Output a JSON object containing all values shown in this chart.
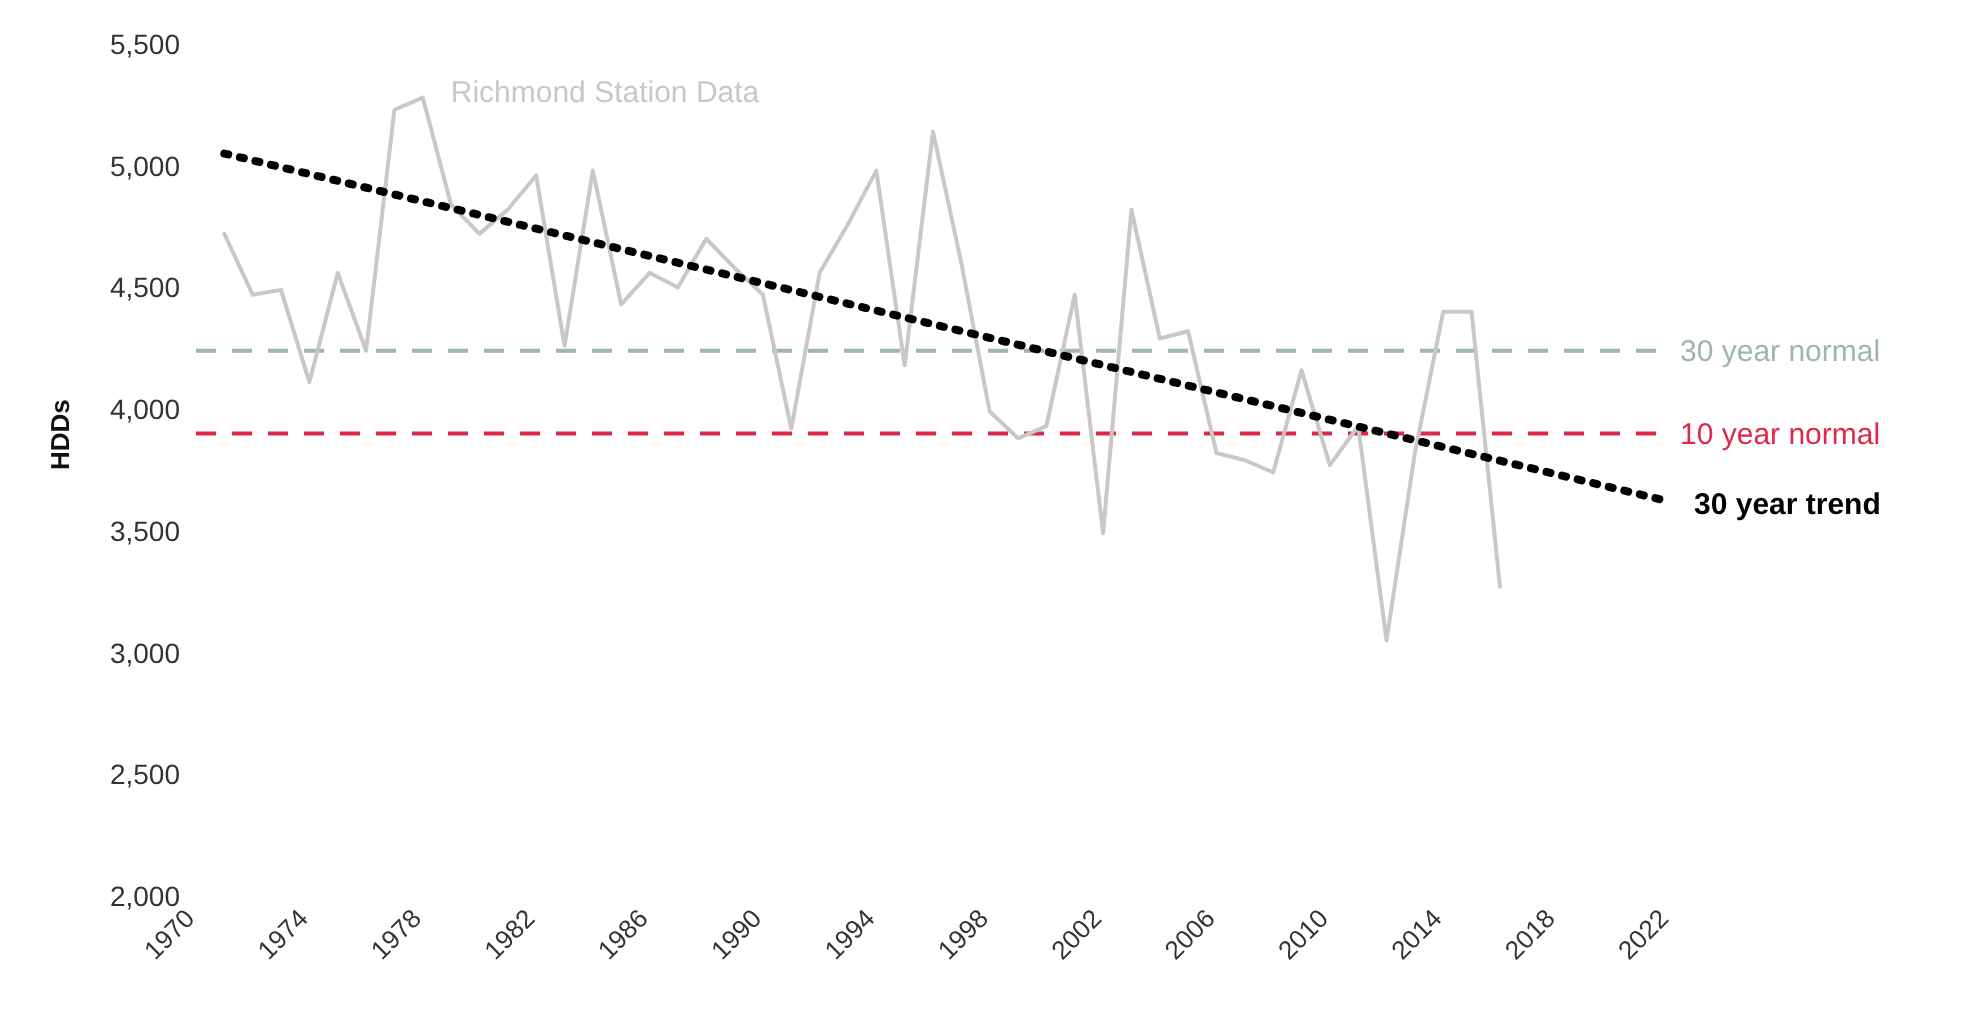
{
  "chart_data": {
    "type": "line",
    "ylabel": "HDDs",
    "xlim": [
      1970,
      2022
    ],
    "xticks": [
      1970,
      1974,
      1978,
      1982,
      1986,
      1990,
      1994,
      1998,
      2002,
      2006,
      2010,
      2014,
      2018,
      2022
    ],
    "ylim": [
      2000,
      5500
    ],
    "yticks": [
      {
        "value": 2000,
        "label": "2,000"
      },
      {
        "value": 2500,
        "label": "2,500"
      },
      {
        "value": 3000,
        "label": "3,000"
      },
      {
        "value": 3500,
        "label": "3,500"
      },
      {
        "value": 4000,
        "label": "4,000"
      },
      {
        "value": 4500,
        "label": "4,500"
      },
      {
        "value": 5000,
        "label": "5,000"
      },
      {
        "value": 5500,
        "label": "5,500"
      }
    ],
    "grid": false,
    "legend": false,
    "marker": "none",
    "series": [
      {
        "name": "Richmond Station Data",
        "color": "#c8c8c8",
        "line_style": "solid",
        "x": [
          1971,
          1972,
          1973,
          1974,
          1975,
          1976,
          1977,
          1978,
          1979,
          1980,
          1981,
          1982,
          1983,
          1984,
          1985,
          1986,
          1987,
          1988,
          1989,
          1990,
          1991,
          1992,
          1993,
          1994,
          1995,
          1996,
          1997,
          1998,
          1999,
          2000,
          2001,
          2002,
          2003,
          2004,
          2005,
          2006,
          2007,
          2008,
          2009,
          2010,
          2011,
          2012,
          2013,
          2014,
          2015,
          2016
        ],
        "values": [
          4720,
          4470,
          4490,
          4110,
          4560,
          4240,
          5230,
          5280,
          4840,
          4720,
          4820,
          4960,
          4260,
          4980,
          4430,
          4560,
          4500,
          4700,
          4580,
          4470,
          3920,
          4560,
          4760,
          4980,
          4180,
          5140,
          4600,
          3990,
          3880,
          3930,
          4470,
          3490,
          4820,
          4290,
          4320,
          3820,
          3790,
          3740,
          4160,
          3770,
          3930,
          3050,
          3820,
          4400,
          4400,
          3270
        ]
      },
      {
        "name": "30 year trend",
        "type": "line",
        "color": "#000000",
        "line_style": "dotted",
        "x": [
          1971,
          2022
        ],
        "values": [
          5050,
          3620
        ]
      }
    ],
    "ref_lines": [
      {
        "axis": "y",
        "value": 4240,
        "label": "30 year normal",
        "color": "#9fb4b4",
        "line_style": "dashed"
      },
      {
        "axis": "y",
        "value": 3900,
        "label": "10 year normal",
        "color": "#e0284a",
        "line_style": "dashed"
      }
    ]
  }
}
